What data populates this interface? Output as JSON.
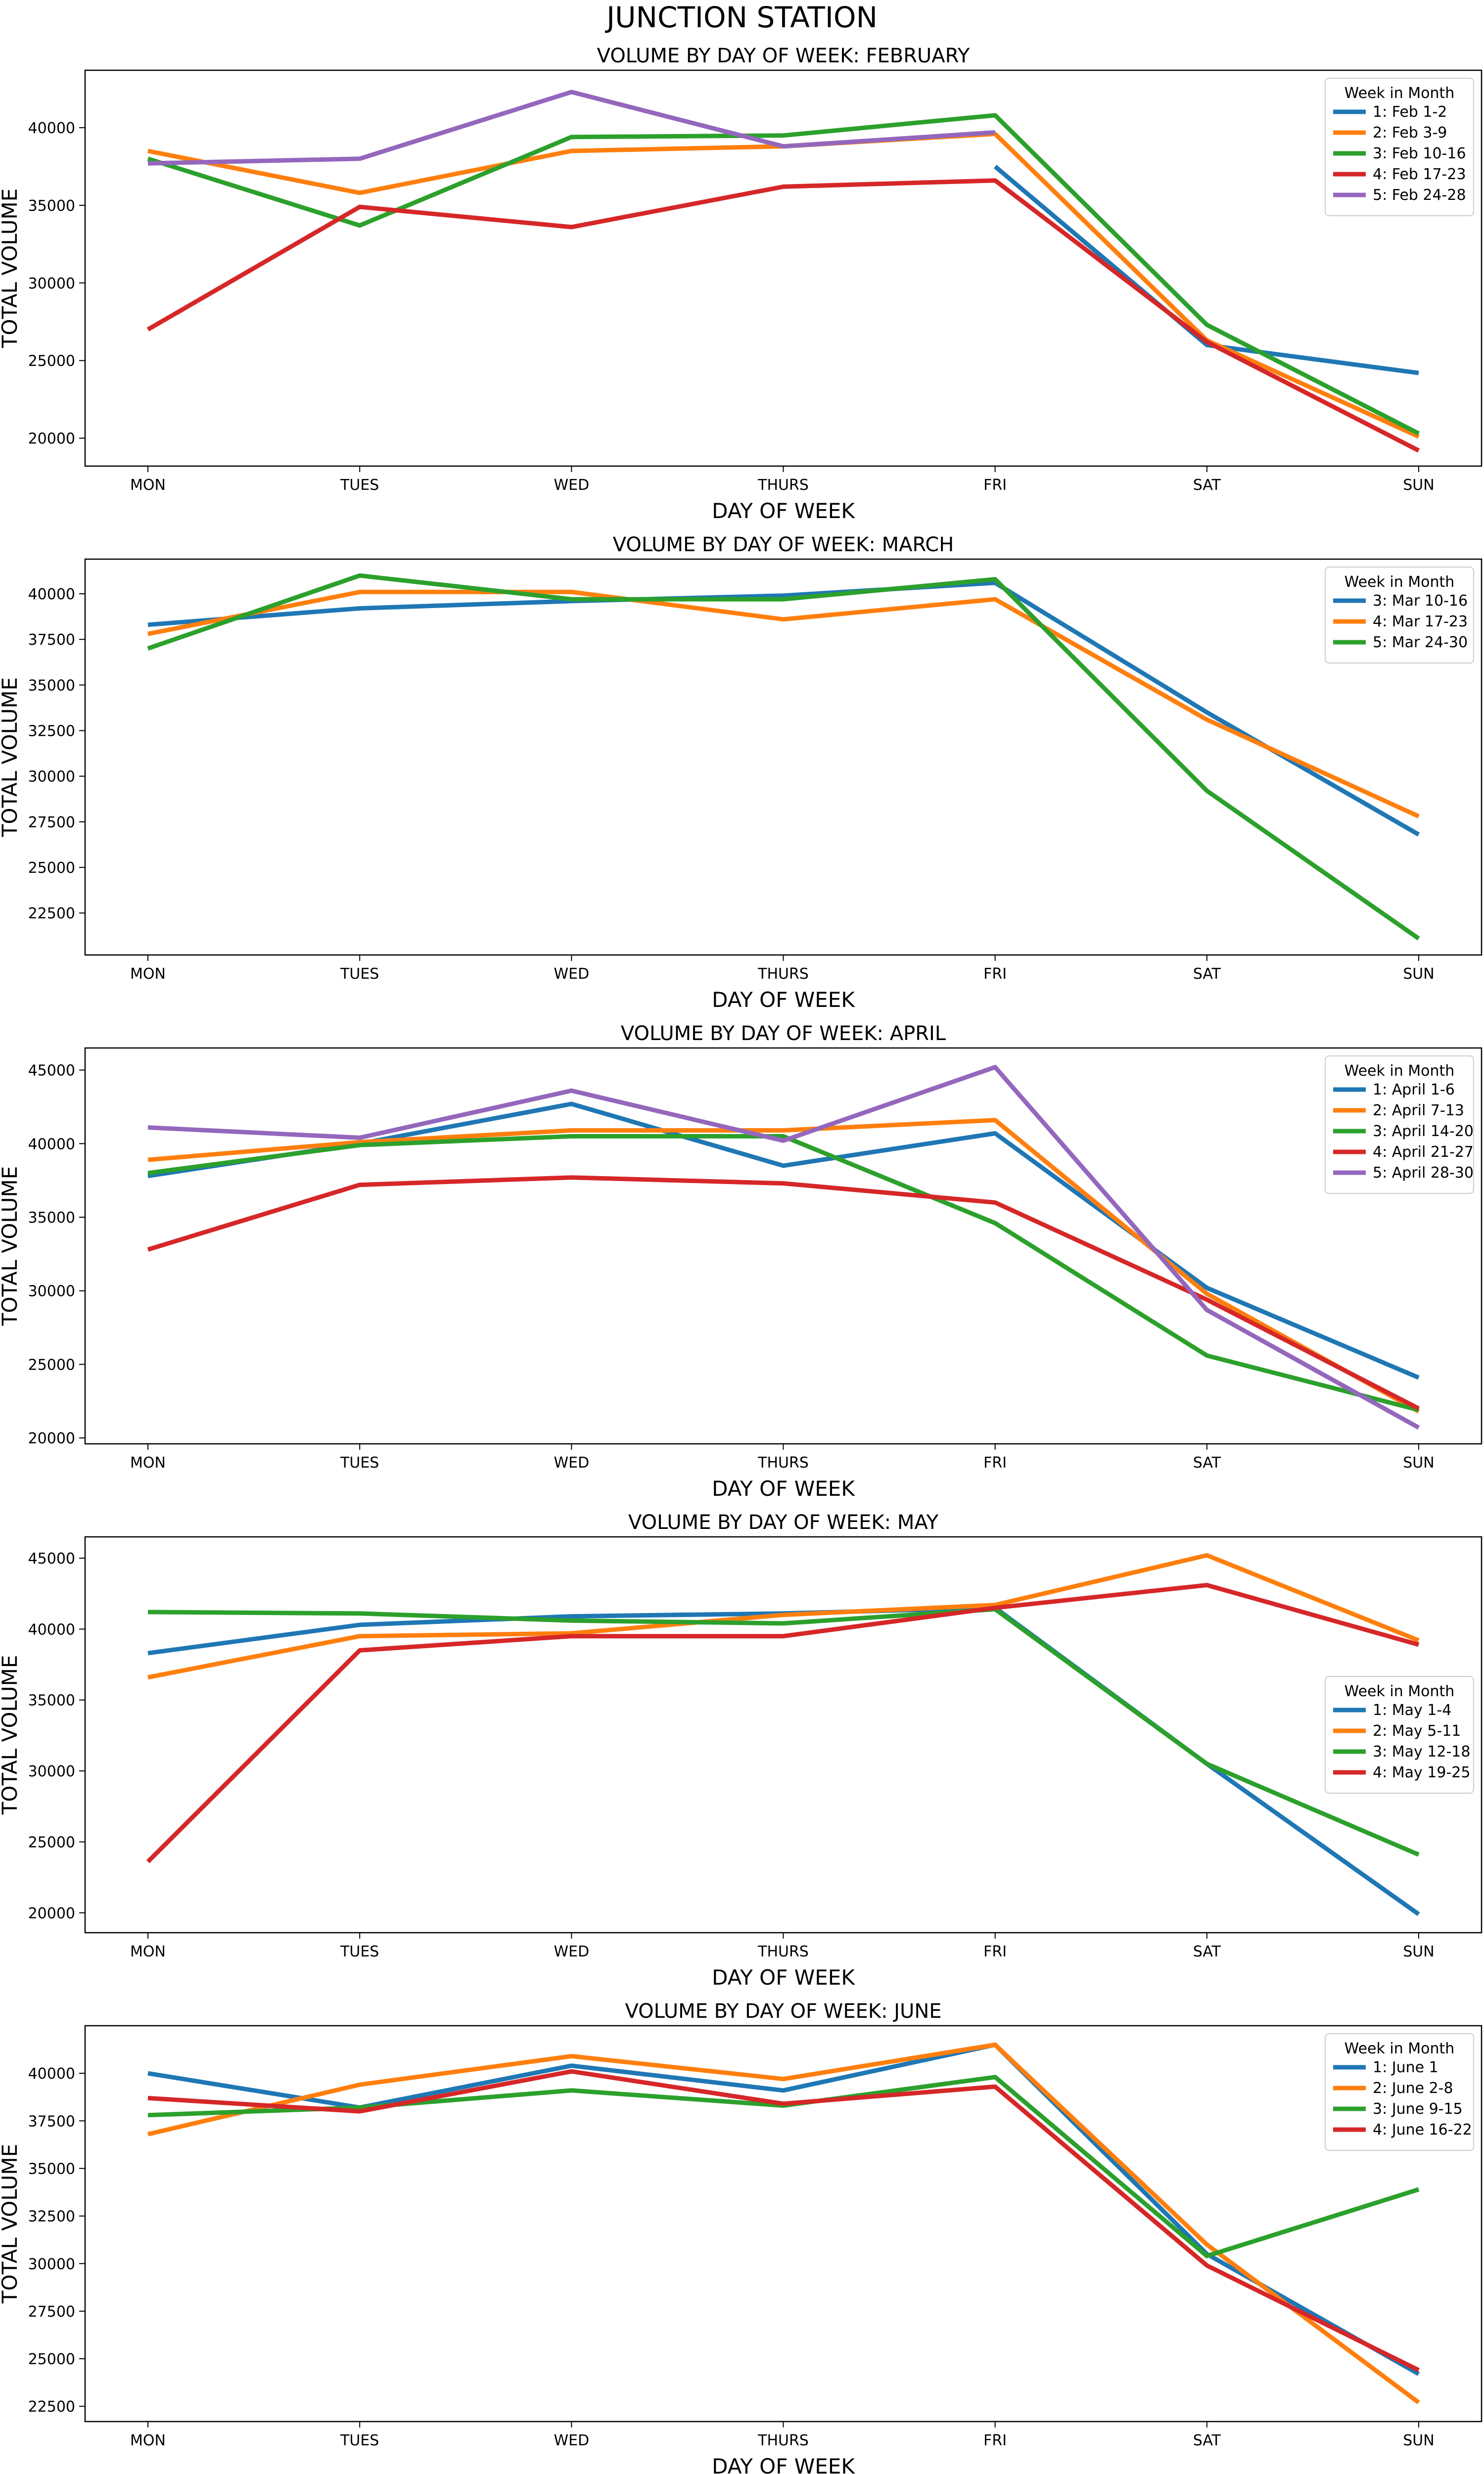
{
  "suptitle": "JUNCTION STATION",
  "legend_title": "Week in Month",
  "chart_data": [
    {
      "type": "line",
      "title": "VOLUME BY DAY OF WEEK: FEBRUARY",
      "xlabel": "DAY OF WEEK",
      "ylabel": "TOTAL VOLUME",
      "categories": [
        "MON",
        "TUES",
        "WED",
        "THURS",
        "FRI",
        "SAT",
        "SUN"
      ],
      "ylim": [
        18200,
        43700
      ],
      "yticks": [
        20000,
        25000,
        30000,
        35000,
        40000
      ],
      "legend_position": "top-right",
      "series": [
        {
          "name": "1: Feb 1-2",
          "color": "#1f77b4",
          "values": [
            null,
            null,
            null,
            null,
            37500,
            26000,
            24200
          ]
        },
        {
          "name": "2: Feb 3-9",
          "color": "#ff7f0e",
          "values": [
            38500,
            35800,
            38500,
            38800,
            39600,
            26300,
            20100
          ]
        },
        {
          "name": "3: Feb 10-16",
          "color": "#2ca02c",
          "values": [
            38000,
            33700,
            39400,
            39500,
            40800,
            27300,
            20300
          ]
        },
        {
          "name": "4: Feb 17-23",
          "color": "#d62728",
          "values": [
            27000,
            34900,
            33600,
            36200,
            36600,
            26200,
            19200
          ]
        },
        {
          "name": "5: Feb 24-28",
          "color": "#9467bd",
          "values": [
            37700,
            38000,
            42300,
            38800,
            39700,
            null,
            null
          ]
        }
      ]
    },
    {
      "type": "line",
      "title": "VOLUME BY DAY OF WEEK: MARCH",
      "xlabel": "DAY OF WEEK",
      "ylabel": "TOTAL VOLUME",
      "categories": [
        "MON",
        "TUES",
        "WED",
        "THURS",
        "FRI",
        "SAT",
        "SUN"
      ],
      "ylim": [
        20200,
        41900
      ],
      "yticks": [
        22500,
        25000,
        27500,
        30000,
        32500,
        35000,
        37500,
        40000
      ],
      "legend_position": "top-right",
      "series": [
        {
          "name": "3: Mar 10-16",
          "color": "#1f77b4",
          "values": [
            38300,
            39200,
            39600,
            39900,
            40600,
            33500,
            26800
          ]
        },
        {
          "name": "4: Mar 17-23",
          "color": "#ff7f0e",
          "values": [
            37800,
            40100,
            40100,
            38600,
            39700,
            33100,
            27800
          ]
        },
        {
          "name": "5: Mar 24-30",
          "color": "#2ca02c",
          "values": [
            37000,
            41000,
            39700,
            39700,
            40800,
            29200,
            21100
          ]
        }
      ]
    },
    {
      "type": "line",
      "title": "VOLUME BY DAY OF WEEK: APRIL",
      "xlabel": "DAY OF WEEK",
      "ylabel": "TOTAL VOLUME",
      "categories": [
        "MON",
        "TUES",
        "WED",
        "THURS",
        "FRI",
        "SAT",
        "SUN"
      ],
      "ylim": [
        19600,
        46500
      ],
      "yticks": [
        20000,
        25000,
        30000,
        35000,
        40000,
        45000
      ],
      "legend_position": "top-right",
      "series": [
        {
          "name": "1: April 1-6",
          "color": "#1f77b4",
          "values": [
            37800,
            40000,
            42700,
            38500,
            40700,
            30200,
            24100
          ]
        },
        {
          "name": "2: April 7-13",
          "color": "#ff7f0e",
          "values": [
            38900,
            40100,
            40900,
            40900,
            41600,
            29800,
            21800
          ]
        },
        {
          "name": "3: April 14-20",
          "color": "#2ca02c",
          "values": [
            38000,
            39900,
            40500,
            40500,
            34600,
            25600,
            21900
          ]
        },
        {
          "name": "4: April 21-27",
          "color": "#d62728",
          "values": [
            32800,
            37200,
            37700,
            37300,
            36000,
            29400,
            22000
          ]
        },
        {
          "name": "5: April 28-30",
          "color": "#9467bd",
          "values": [
            41100,
            40400,
            43600,
            40200,
            45200,
            28700,
            20700
          ]
        }
      ]
    },
    {
      "type": "line",
      "title": "VOLUME BY DAY OF WEEK: MAY",
      "xlabel": "DAY OF WEEK",
      "ylabel": "TOTAL VOLUME",
      "categories": [
        "MON",
        "TUES",
        "WED",
        "THURS",
        "FRI",
        "SAT",
        "SUN"
      ],
      "ylim": [
        18600,
        46500
      ],
      "yticks": [
        20000,
        25000,
        30000,
        35000,
        40000,
        45000
      ],
      "legend_position": "center-right",
      "series": [
        {
          "name": "1: May 1-4",
          "color": "#1f77b4",
          "values": [
            38300,
            40300,
            40900,
            41100,
            41500,
            30500,
            19900
          ]
        },
        {
          "name": "2: May 5-11",
          "color": "#ff7f0e",
          "values": [
            36600,
            39500,
            39700,
            41000,
            41700,
            45200,
            39200
          ]
        },
        {
          "name": "3: May 12-18",
          "color": "#2ca02c",
          "values": [
            41200,
            41100,
            40600,
            40400,
            41400,
            30500,
            24100
          ]
        },
        {
          "name": "4: May 19-25",
          "color": "#d62728",
          "values": [
            23600,
            38500,
            39500,
            39500,
            41500,
            43100,
            38900
          ]
        }
      ]
    },
    {
      "type": "line",
      "title": "VOLUME BY DAY OF WEEK: JUNE",
      "xlabel": "DAY OF WEEK",
      "ylabel": "TOTAL VOLUME",
      "categories": [
        "MON",
        "TUES",
        "WED",
        "THURS",
        "FRI",
        "SAT",
        "SUN"
      ],
      "ylim": [
        21700,
        42500
      ],
      "yticks": [
        22500,
        25000,
        27500,
        30000,
        32500,
        35000,
        37500,
        40000
      ],
      "legend_position": "top-right",
      "series": [
        {
          "name": "1: June 1",
          "color": "#1f77b4",
          "values": [
            40000,
            38200,
            40400,
            39100,
            41500,
            30500,
            24200
          ]
        },
        {
          "name": "2: June 2-8",
          "color": "#ff7f0e",
          "values": [
            36800,
            39400,
            40900,
            39700,
            41500,
            31000,
            22700
          ]
        },
        {
          "name": "3: June 9-15",
          "color": "#2ca02c",
          "values": [
            37800,
            38200,
            39100,
            38300,
            39800,
            30400,
            33900
          ]
        },
        {
          "name": "4: June 16-22",
          "color": "#d62728",
          "values": [
            38700,
            38000,
            40100,
            38400,
            39300,
            29900,
            24400
          ]
        }
      ]
    }
  ]
}
